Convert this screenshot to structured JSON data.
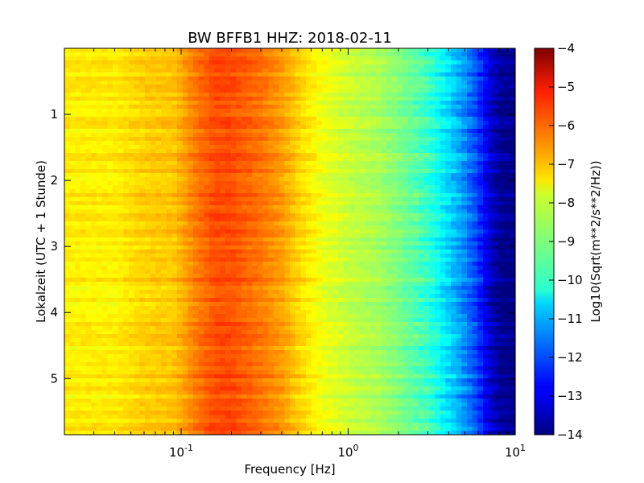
{
  "chart_data": {
    "type": "heatmap",
    "title": "BW BFFB1 HHZ: 2018-02-11",
    "xlabel": "Frequency [Hz]",
    "ylabel": "Lokalzeit (UTC + 1 Stunde)",
    "x_scale": "log",
    "xlim": [
      0.02,
      10
    ],
    "x_ticks": [
      {
        "value": 0.1,
        "base": "10",
        "exp": "-1"
      },
      {
        "value": 1,
        "base": "10",
        "exp": "0"
      },
      {
        "value": 10,
        "base": "10",
        "exp": "1"
      }
    ],
    "ylim": [
      0,
      5.85
    ],
    "y_inverted": true,
    "y_ticks": [
      {
        "value": 1,
        "label": "1"
      },
      {
        "value": 2,
        "label": "2"
      },
      {
        "value": 3,
        "label": "3"
      },
      {
        "value": 4,
        "label": "4"
      },
      {
        "value": 5,
        "label": "5"
      }
    ],
    "colorbar": {
      "label": "Log10(Sqrt(m**2/s**2/Hz))",
      "range": [
        -14,
        -4
      ],
      "ticks": [
        {
          "value": -4,
          "label": "−4"
        },
        {
          "value": -5,
          "label": "−5"
        },
        {
          "value": -6,
          "label": "−6"
        },
        {
          "value": -7,
          "label": "−7"
        },
        {
          "value": -8,
          "label": "−8"
        },
        {
          "value": -9,
          "label": "−9"
        },
        {
          "value": -10,
          "label": "−10"
        },
        {
          "value": -11,
          "label": "−11"
        },
        {
          "value": -12,
          "label": "−12"
        },
        {
          "value": -13,
          "label": "−13"
        },
        {
          "value": -14,
          "label": "−14"
        }
      ],
      "colormap": "jet"
    },
    "spectrum_profile": [
      {
        "frequency_hz": 0.02,
        "value": -7.6
      },
      {
        "frequency_hz": 0.04,
        "value": -7.6
      },
      {
        "frequency_hz": 0.06,
        "value": -7.3
      },
      {
        "frequency_hz": 0.09,
        "value": -7.2
      },
      {
        "frequency_hz": 0.12,
        "value": -6.5
      },
      {
        "frequency_hz": 0.16,
        "value": -6.0
      },
      {
        "frequency_hz": 0.2,
        "value": -6.0
      },
      {
        "frequency_hz": 0.3,
        "value": -6.4
      },
      {
        "frequency_hz": 0.4,
        "value": -6.8
      },
      {
        "frequency_hz": 0.5,
        "value": -7.3
      },
      {
        "frequency_hz": 0.7,
        "value": -7.9
      },
      {
        "frequency_hz": 1.0,
        "value": -8.3
      },
      {
        "frequency_hz": 1.5,
        "value": -8.6
      },
      {
        "frequency_hz": 2.0,
        "value": -9.0
      },
      {
        "frequency_hz": 3.0,
        "value": -9.7
      },
      {
        "frequency_hz": 4.0,
        "value": -10.6
      },
      {
        "frequency_hz": 5.0,
        "value": -11.4
      },
      {
        "frequency_hz": 6.0,
        "value": -12.2
      },
      {
        "frequency_hz": 7.0,
        "value": -13.2
      },
      {
        "frequency_hz": 8.0,
        "value": -13.8
      },
      {
        "frequency_hz": 10.0,
        "value": -14.0
      }
    ],
    "grid": false
  }
}
